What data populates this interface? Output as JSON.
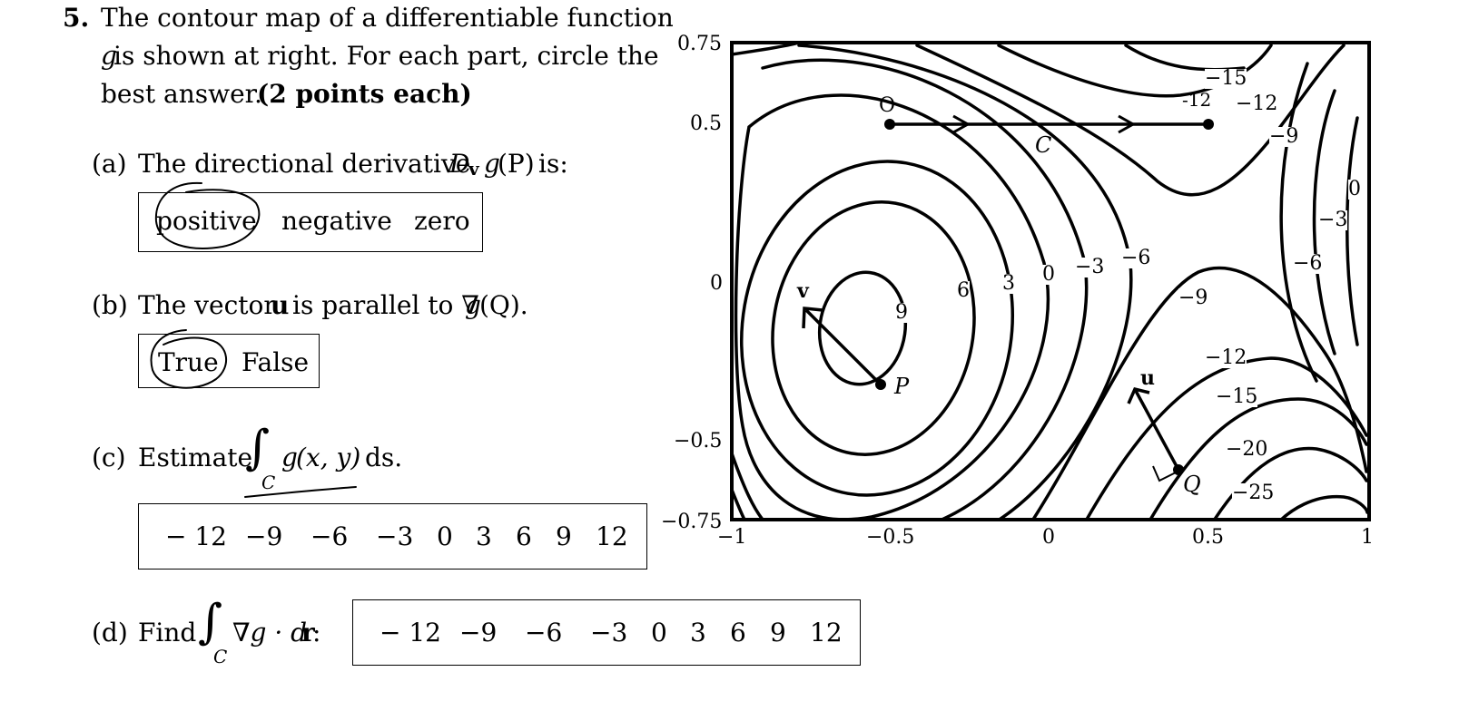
{
  "problem": {
    "number": "5.",
    "line1": "The contour map of a differentiable function",
    "line2_var": "g",
    "line2_rest": " is shown at right.  For each part, circle the",
    "line3": "best answer.",
    "points": "(2 points each)"
  },
  "part_a": {
    "label": "(a)",
    "text": "The directional derivative",
    "D": "D",
    "sub_v": "v",
    "g": "g",
    "arg": "(P)",
    "tail": " is:",
    "choices": [
      "positive",
      "negative",
      "zero"
    ],
    "circled": "positive"
  },
  "part_b": {
    "label": "(b)",
    "text_pre": "The vector",
    "vec": "u",
    "text_mid": "is parallel to ∇",
    "g": "g",
    "arg": "(Q).",
    "choices": [
      "True",
      "False"
    ],
    "circled": "True"
  },
  "part_c": {
    "label": "(c)",
    "text": "Estimate",
    "integral": "∫",
    "sub": "C",
    "integrand_g": "g",
    "integrand_args": "(x, y)",
    "tail": "ds.",
    "choices": [
      "− 12",
      "−9",
      "−6",
      "−3",
      "0",
      "3",
      "6",
      "9",
      "12"
    ]
  },
  "part_d": {
    "label": "(d)",
    "text": "Find",
    "integral": "∫",
    "sub": "C",
    "integrand": "∇g · d",
    "bold_r": "r",
    "colon": ":",
    "choices": [
      "− 12",
      "−9",
      "−6",
      "−3",
      "0",
      "3",
      "6",
      "9",
      "12"
    ]
  },
  "plot": {
    "x_ticks": [
      "−1",
      "−0.5",
      "0",
      "0.5",
      "1"
    ],
    "y_ticks": [
      "0.75",
      "0.5",
      "0",
      "−0.5",
      "−0.75"
    ],
    "contour_labels": [
      "−15",
      "−12",
      "−9",
      "0",
      "−3",
      "−6",
      "6",
      "3",
      "0",
      "−3",
      "−6",
      "−9",
      "9",
      "−12",
      "−15",
      "−20",
      "−25"
    ],
    "point_P": "P",
    "point_Q": "Q",
    "vector_v": "v",
    "vector_u": "u",
    "curve_C": "C",
    "handwritten_near_start": "O",
    "handwritten_near_end": "-12"
  }
}
